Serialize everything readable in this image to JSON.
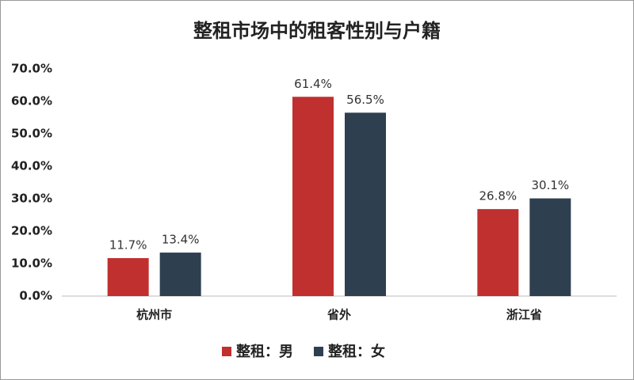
{
  "chart_data": {
    "type": "bar",
    "title": "整租市场中的租客性别与户籍",
    "categories": [
      "杭州市",
      "省外",
      "浙江省"
    ],
    "series": [
      {
        "name": "整租：男",
        "color": "#c0302f",
        "values": [
          11.7,
          61.4,
          26.8
        ],
        "value_labels": [
          "11.7%",
          "61.4%",
          "26.8%"
        ]
      },
      {
        "name": "整租：女",
        "color": "#2e3f50",
        "values": [
          13.4,
          56.5,
          30.1
        ],
        "value_labels": [
          "13.4%",
          "56.5%",
          "30.1%"
        ]
      }
    ],
    "ylim": [
      0,
      70
    ],
    "yticks": [
      {
        "value": 0,
        "label": "0.0%"
      },
      {
        "value": 10,
        "label": "10.0%"
      },
      {
        "value": 20,
        "label": "20.0%"
      },
      {
        "value": 30,
        "label": "30.0%"
      },
      {
        "value": 40,
        "label": "40.0%"
      },
      {
        "value": 50,
        "label": "50.0%"
      },
      {
        "value": 60,
        "label": "60.0%"
      },
      {
        "value": 70,
        "label": "70.0%"
      }
    ],
    "grid": false,
    "legend": "bottom"
  }
}
